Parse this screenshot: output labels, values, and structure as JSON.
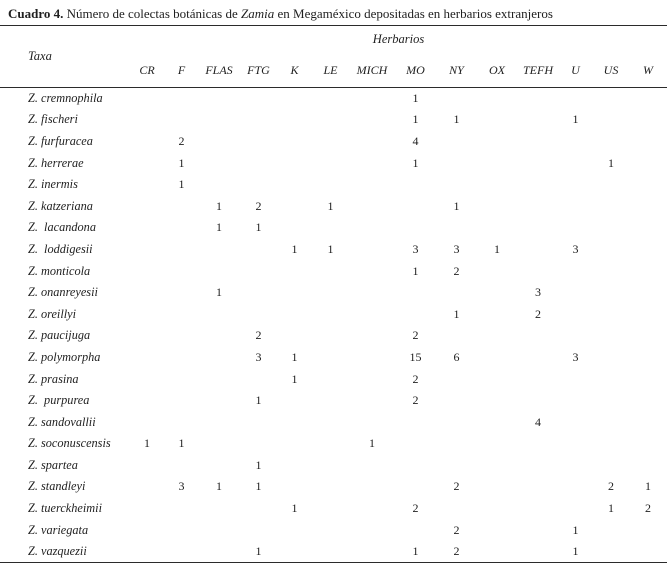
{
  "caption": {
    "label": "Cuadro 4.",
    "text_before_genus": " Número de colectas botánicas de ",
    "genus": "Zamia",
    "text_after_genus": " en Megaméxico depositadas en herbarios extranjeros"
  },
  "table": {
    "group_header": "Herbarios",
    "row_header": "Taxa",
    "columns": [
      "CR",
      "F",
      "FLAS",
      "FTG",
      "K",
      "LE",
      "MICH",
      "MO",
      "NY",
      "OX",
      "TEFH",
      "U",
      "US",
      "W"
    ],
    "rows": [
      {
        "taxon": "Z. cremnophila",
        "values": [
          "",
          "",
          "",
          "",
          "",
          "",
          "",
          "1",
          "",
          "",
          "",
          "",
          "",
          ""
        ]
      },
      {
        "taxon": "Z. fischeri",
        "values": [
          "",
          "",
          "",
          "",
          "",
          "",
          "",
          "1",
          "1",
          "",
          "",
          "1",
          "",
          ""
        ]
      },
      {
        "taxon": "Z. furfuracea",
        "values": [
          "",
          "2",
          "",
          "",
          "",
          "",
          "",
          "4",
          "",
          "",
          "",
          "",
          "",
          ""
        ]
      },
      {
        "taxon": "Z. herrerae",
        "values": [
          "",
          "1",
          "",
          "",
          "",
          "",
          "",
          "1",
          "",
          "",
          "",
          "",
          "1",
          ""
        ]
      },
      {
        "taxon": "Z. inermis",
        "values": [
          "",
          "1",
          "",
          "",
          "",
          "",
          "",
          "",
          "",
          "",
          "",
          "",
          "",
          ""
        ]
      },
      {
        "taxon": "Z. katzeriana",
        "values": [
          "",
          "",
          "1",
          "2",
          "",
          "1",
          "",
          "",
          "1",
          "",
          "",
          "",
          "",
          ""
        ]
      },
      {
        "taxon": "Z.  lacandona",
        "values": [
          "",
          "",
          "1",
          "1",
          "",
          "",
          "",
          "",
          "",
          "",
          "",
          "",
          "",
          ""
        ]
      },
      {
        "taxon": "Z.  loddigesii",
        "values": [
          "",
          "",
          "",
          "",
          "1",
          "1",
          "",
          "3",
          "3",
          "1",
          "",
          "3",
          "",
          ""
        ]
      },
      {
        "taxon": "Z. monticola",
        "values": [
          "",
          "",
          "",
          "",
          "",
          "",
          "",
          "1",
          "2",
          "",
          "",
          "",
          "",
          ""
        ]
      },
      {
        "taxon": "Z. onanreyesii",
        "values": [
          "",
          "",
          "1",
          "",
          "",
          "",
          "",
          "",
          "",
          "",
          "3",
          "",
          "",
          ""
        ]
      },
      {
        "taxon": "Z. oreillyi",
        "values": [
          "",
          "",
          "",
          "",
          "",
          "",
          "",
          "",
          "1",
          "",
          "2",
          "",
          "",
          ""
        ]
      },
      {
        "taxon": "Z. paucijuga",
        "values": [
          "",
          "",
          "",
          "2",
          "",
          "",
          "",
          "2",
          "",
          "",
          "",
          "",
          "",
          ""
        ]
      },
      {
        "taxon": "Z. polymorpha",
        "values": [
          "",
          "",
          "",
          "3",
          "1",
          "",
          "",
          "15",
          "6",
          "",
          "",
          "3",
          "",
          ""
        ]
      },
      {
        "taxon": "Z. prasina",
        "values": [
          "",
          "",
          "",
          "",
          "1",
          "",
          "",
          "2",
          "",
          "",
          "",
          "",
          "",
          ""
        ]
      },
      {
        "taxon": "Z.  purpurea",
        "values": [
          "",
          "",
          "",
          "1",
          "",
          "",
          "",
          "2",
          "",
          "",
          "",
          "",
          "",
          ""
        ]
      },
      {
        "taxon": "Z. sandovallii",
        "values": [
          "",
          "",
          "",
          "",
          "",
          "",
          "",
          "",
          "",
          "",
          "4",
          "",
          "",
          ""
        ]
      },
      {
        "taxon": "Z. soconuscensis",
        "values": [
          "1",
          "1",
          "",
          "",
          "",
          "",
          "1",
          "",
          "",
          "",
          "",
          "",
          "",
          ""
        ]
      },
      {
        "taxon": "Z. spartea",
        "values": [
          "",
          "",
          "",
          "1",
          "",
          "",
          "",
          "",
          "",
          "",
          "",
          "",
          "",
          ""
        ]
      },
      {
        "taxon": "Z. standleyi",
        "values": [
          "",
          "3",
          "1",
          "1",
          "",
          "",
          "",
          "",
          "2",
          "",
          "",
          "",
          "2",
          "1"
        ]
      },
      {
        "taxon": "Z. tuerckheimii",
        "values": [
          "",
          "",
          "",
          "",
          "1",
          "",
          "",
          "2",
          "",
          "",
          "",
          "",
          "1",
          "2"
        ]
      },
      {
        "taxon": "Z. variegata",
        "values": [
          "",
          "",
          "",
          "",
          "",
          "",
          "",
          "",
          "2",
          "",
          "",
          "1",
          "",
          ""
        ]
      },
      {
        "taxon": "Z. vazquezii",
        "values": [
          "",
          "",
          "",
          "1",
          "",
          "",
          "",
          "1",
          "2",
          "",
          "",
          "1",
          "",
          ""
        ]
      }
    ]
  }
}
